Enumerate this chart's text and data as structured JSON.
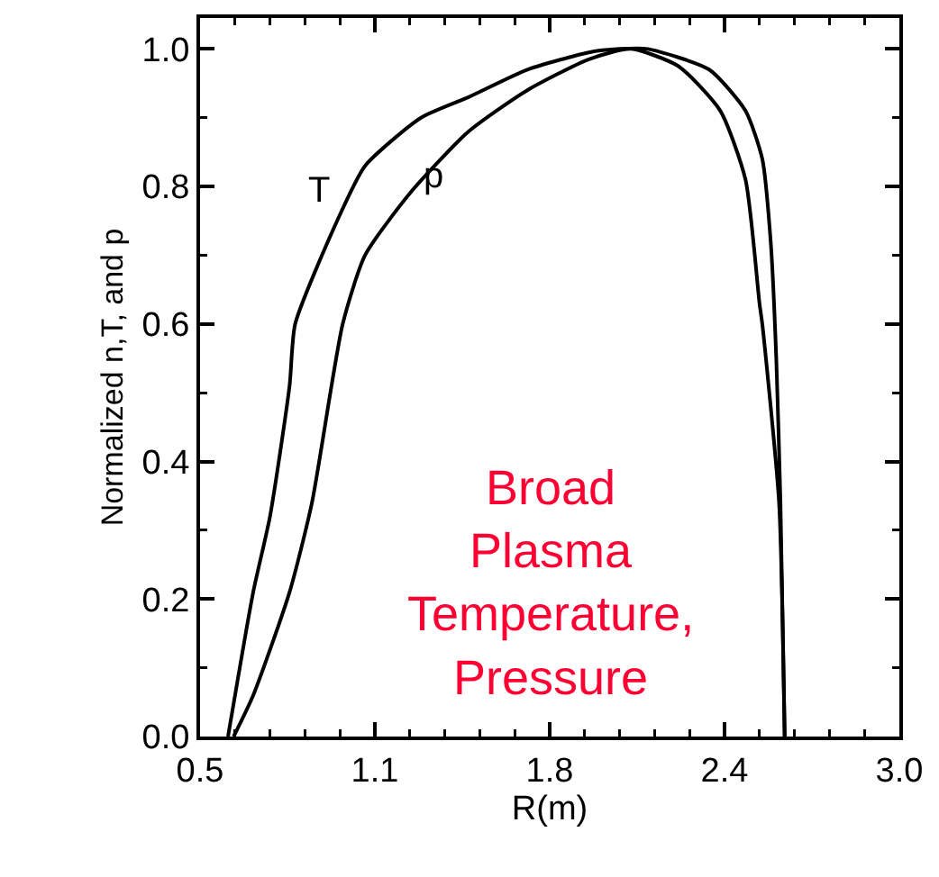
{
  "chart_data": {
    "type": "line",
    "xlabel": "R(m)",
    "ylabel": "Normalized n,T, and p",
    "annotations": [
      "Broad\nPlasma\nTemperature,\nPressure"
    ],
    "xlim": [
      0.5,
      3.0
    ],
    "ylim": [
      0,
      1.045
    ],
    "xticks": [
      0.5,
      {
        "value": 1.125,
        "label": "1.1"
      },
      {
        "value": 1.75,
        "label": "1.8"
      },
      {
        "value": 2.375,
        "label": "2.4"
      },
      {
        "value": 3.0,
        "label": "3.0"
      }
    ],
    "yticks": [
      {
        "value": 0,
        "label": "0.0"
      },
      0.2,
      0.4,
      0.6,
      0.8,
      {
        "value": 1,
        "label": "1.0"
      }
    ],
    "grid": false,
    "legend": false,
    "marker": "none",
    "line_style": "solid",
    "series": [
      {
        "name": "T",
        "color": "#000000",
        "x": [
          0.6,
          0.69,
          0.75,
          0.82,
          0.84,
          0.99,
          1.09,
          1.29,
          1.46,
          1.67,
          1.89,
          2.0,
          2.1,
          2.32,
          2.45,
          2.51,
          2.54,
          2.56,
          2.575,
          2.59
        ],
        "values": [
          0,
          0.21,
          0.32,
          0.51,
          0.6,
          0.75,
          0.83,
          0.9,
          0.93,
          0.97,
          0.995,
          1.0,
          1.0,
          0.97,
          0.91,
          0.84,
          0.72,
          0.55,
          0.34,
          0
        ]
      },
      {
        "name": "p",
        "color": "#000000",
        "x": [
          0.62,
          0.69,
          0.82,
          0.9,
          1.01,
          1.09,
          1.25,
          1.46,
          1.67,
          1.89,
          2.04,
          2.21,
          2.36,
          2.45,
          2.5,
          2.51,
          2.57,
          2.59
        ],
        "values": [
          0,
          0.06,
          0.21,
          0.34,
          0.6,
          0.7,
          0.79,
          0.88,
          0.94,
          0.985,
          1.0,
          0.975,
          0.91,
          0.81,
          0.63,
          0.6,
          0.34,
          0
        ]
      }
    ]
  }
}
